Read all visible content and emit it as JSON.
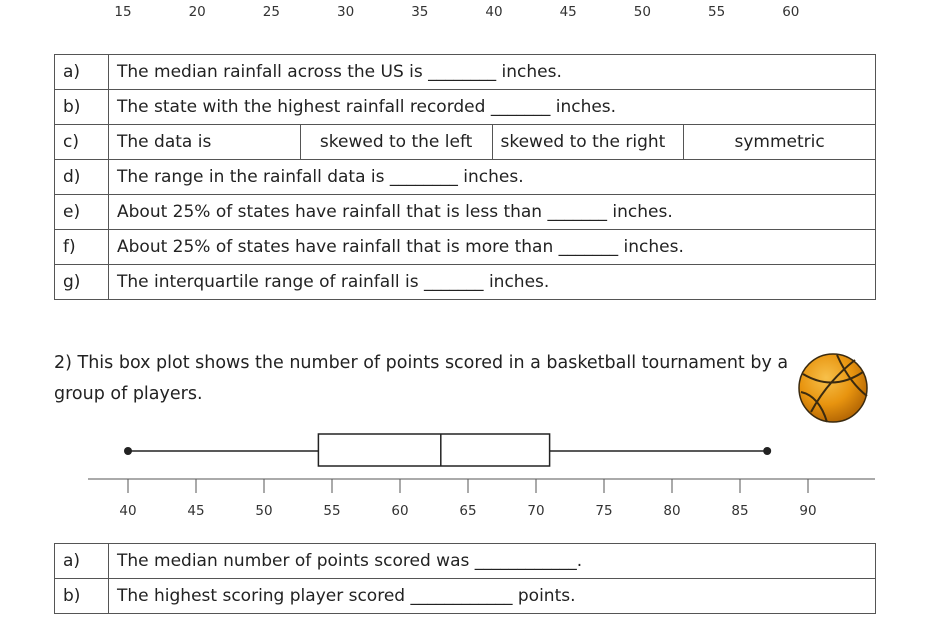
{
  "top_axis": {
    "ticks": [
      {
        "label": "15",
        "value": 15
      },
      {
        "label": "20",
        "value": 20
      },
      {
        "label": "25",
        "value": 25
      },
      {
        "label": "30",
        "value": 30
      },
      {
        "label": "35",
        "value": 35
      },
      {
        "label": "40",
        "value": 40
      },
      {
        "label": "45",
        "value": 45
      },
      {
        "label": "50",
        "value": 50
      },
      {
        "label": "55",
        "value": 55
      },
      {
        "label": "60",
        "value": 60
      }
    ]
  },
  "q1": {
    "rows": [
      {
        "letter": "a)",
        "text": "The median rainfall across the US is ________ inches."
      },
      {
        "letter": "b)",
        "text": "The state with the highest rainfall recorded _______ inches."
      },
      {
        "letter": "c)",
        "text": "The data is",
        "options": [
          "skewed to the left",
          "skewed to the right",
          "symmetric"
        ]
      },
      {
        "letter": "d)",
        "text": "The range in the rainfall data is ________ inches."
      },
      {
        "letter": "e)",
        "text": "About 25% of states have rainfall that is less than _______ inches."
      },
      {
        "letter": "f)",
        "text": "About 25% of states have rainfall that is more than _______ inches."
      },
      {
        "letter": "g)",
        "text": "The interquartile range of rainfall is _______ inches."
      }
    ]
  },
  "q2": {
    "question_line1": "2) This box plot shows the number of points scored in a basketball tournament by a",
    "question_line2": "group of players.",
    "rows": [
      {
        "letter": "a)",
        "text": "The median number of points scored was ____________."
      },
      {
        "letter": "b)",
        "text": "The highest scoring player scored ____________ points."
      }
    ]
  },
  "chart_data": {
    "type": "box",
    "min": 40,
    "q1": 54,
    "median": 63,
    "q3": 71,
    "max": 87,
    "axis_ticks": [
      40,
      45,
      50,
      55,
      60,
      65,
      70,
      75,
      80,
      85,
      90
    ],
    "xlim": [
      40,
      90
    ]
  },
  "colors": {
    "ball_orange": "#e8940f",
    "ball_lines": "#3a2a10",
    "line": "#222222"
  }
}
